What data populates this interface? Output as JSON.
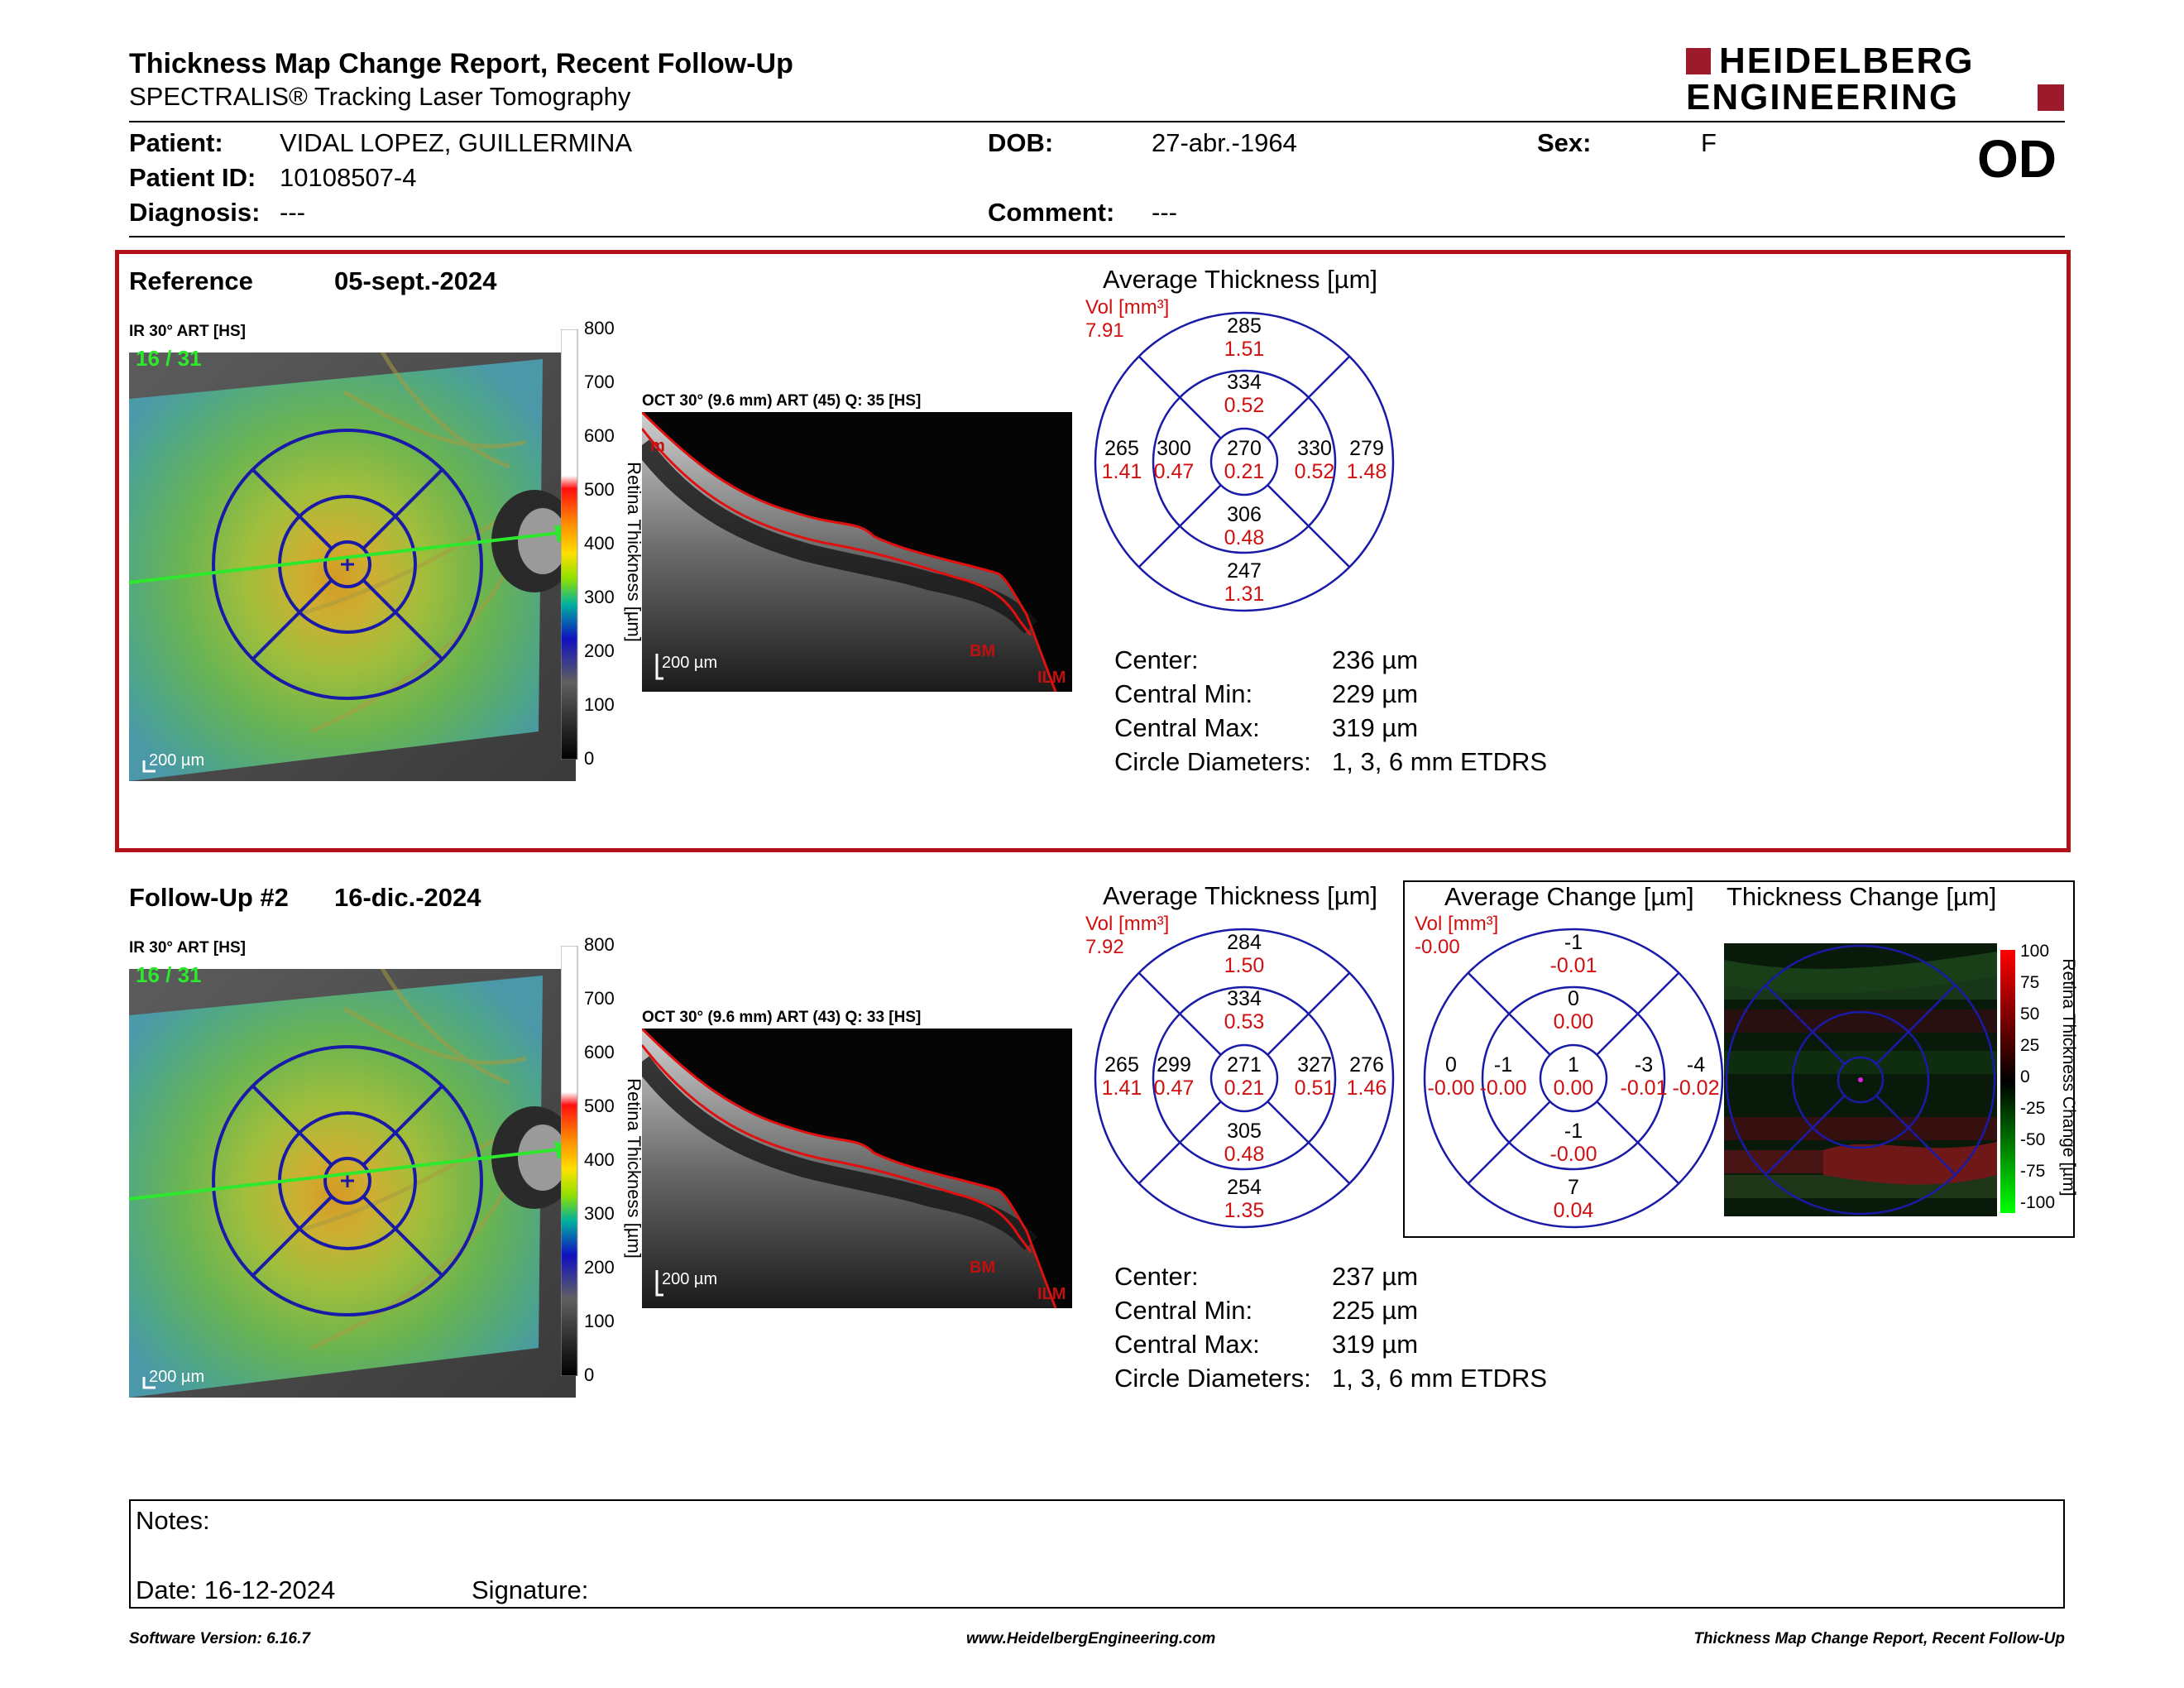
{
  "header": {
    "title": "Thickness Map Change Report, Recent Follow-Up",
    "subtitle": "SPECTRALIS® Tracking Laser Tomography",
    "brand_line1": "HEIDELBERG",
    "brand_line2": "ENGINEERING",
    "eye": "OD"
  },
  "patient": {
    "patient_label": "Patient:",
    "patient_value": "VIDAL LOPEZ, GUILLERMINA",
    "dob_label": "DOB:",
    "dob_value": "27-abr.-1964",
    "sex_label": "Sex:",
    "sex_value": "F",
    "id_label": "Patient ID:",
    "id_value": "10108507-4",
    "diag_label": "Diagnosis:",
    "diag_value": "---",
    "comment_label": "Comment:",
    "comment_value": "---"
  },
  "reference": {
    "label": "Reference",
    "date": "05-sept.-2024",
    "ir_label": "IR 30° ART [HS]",
    "ir_count": "16 / 31",
    "oct_label": "OCT 30° (9.6 mm) ART (45) Q: 35 [HS]",
    "scale_bar": "200 µm",
    "oct_scale": "200 µm",
    "bm": "BM",
    "ilm": "ILM",
    "ilm_top": "m",
    "colorbar_ticks": [
      "800",
      "700",
      "600",
      "500",
      "400",
      "300",
      "200",
      "100",
      "0"
    ],
    "colorbar_label": "Retina  Thickness [µm]",
    "etdrs": {
      "title": "Average Thickness [µm]",
      "vol_label": "Vol [mm³]",
      "vol_value": "7.91",
      "outer_sup": [
        "285",
        "1.51"
      ],
      "inner_sup": [
        "334",
        "0.52"
      ],
      "outer_temp": [
        "265",
        "1.41"
      ],
      "inner_temp": [
        "300",
        "0.47"
      ],
      "center": [
        "270",
        "0.21"
      ],
      "inner_nas": [
        "330",
        "0.52"
      ],
      "outer_nas": [
        "279",
        "1.48"
      ],
      "inner_inf": [
        "306",
        "0.48"
      ],
      "outer_inf": [
        "247",
        "1.31"
      ]
    },
    "stats": [
      {
        "label": "Center:",
        "value": "236 µm"
      },
      {
        "label": "Central Min:",
        "value": "229 µm"
      },
      {
        "label": "Central Max:",
        "value": "319 µm"
      },
      {
        "label": "Circle Diameters:",
        "value": "1, 3, 6 mm ETDRS"
      }
    ]
  },
  "followup": {
    "label": "Follow-Up #2",
    "date": "16-dic.-2024",
    "ir_label": "IR 30° ART [HS]",
    "ir_count": "16 / 31",
    "oct_label": "OCT 30° (9.6 mm) ART (43) Q: 33 [HS]",
    "scale_bar": "200 µm",
    "oct_scale": "200 µm",
    "bm": "BM",
    "ilm": "ILM",
    "colorbar_ticks": [
      "800",
      "700",
      "600",
      "500",
      "400",
      "300",
      "200",
      "100",
      "0"
    ],
    "colorbar_label": "Retina  Thickness [µm]",
    "etdrs": {
      "title": "Average Thickness [µm]",
      "vol_label": "Vol [mm³]",
      "vol_value": "7.92",
      "outer_sup": [
        "284",
        "1.50"
      ],
      "inner_sup": [
        "334",
        "0.53"
      ],
      "outer_temp": [
        "265",
        "1.41"
      ],
      "inner_temp": [
        "299",
        "0.47"
      ],
      "center": [
        "271",
        "0.21"
      ],
      "inner_nas": [
        "327",
        "0.51"
      ],
      "outer_nas": [
        "276",
        "1.46"
      ],
      "inner_inf": [
        "305",
        "0.48"
      ],
      "outer_inf": [
        "254",
        "1.35"
      ]
    },
    "change": {
      "title": "Average Change [µm]",
      "vol_label": "Vol [mm³]",
      "vol_value": "-0.00",
      "outer_sup": [
        "-1",
        "-0.01"
      ],
      "inner_sup": [
        "0",
        "0.00"
      ],
      "outer_temp": [
        "0",
        "-0.00"
      ],
      "inner_temp": [
        "-1",
        "-0.00"
      ],
      "center": [
        "1",
        "0.00"
      ],
      "inner_nas": [
        "-3",
        "-0.01"
      ],
      "outer_nas": [
        "-4",
        "-0.02"
      ],
      "inner_inf": [
        "-1",
        "-0.00"
      ],
      "outer_inf": [
        "7",
        "0.04"
      ]
    },
    "thickness_change": {
      "title": "Thickness Change [µm]",
      "ticks": [
        "100",
        "75",
        "50",
        "25",
        "0",
        "-25",
        "-50",
        "-75",
        "-100"
      ],
      "label": "Retina Thickness Change [µm]"
    },
    "stats": [
      {
        "label": "Center:",
        "value": "237 µm"
      },
      {
        "label": "Central Min:",
        "value": "225 µm"
      },
      {
        "label": "Central Max:",
        "value": "319 µm"
      },
      {
        "label": "Circle Diameters:",
        "value": "1, 3, 6 mm ETDRS"
      }
    ]
  },
  "notes": {
    "notes_label": "Notes:",
    "date_label": "Date: 16-12-2024",
    "signature_label": "Signature:"
  },
  "footer": {
    "left": "Software Version: 6.16.7",
    "center": "www.HeidelbergEngineering.com",
    "right": "Thickness Map Change Report, Recent Follow-Up"
  },
  "colors": {
    "accent_red": "#b3111a",
    "grid_blue": "#1a1aa8",
    "value_red": "#d01010",
    "count_green": "#2ee82e"
  }
}
